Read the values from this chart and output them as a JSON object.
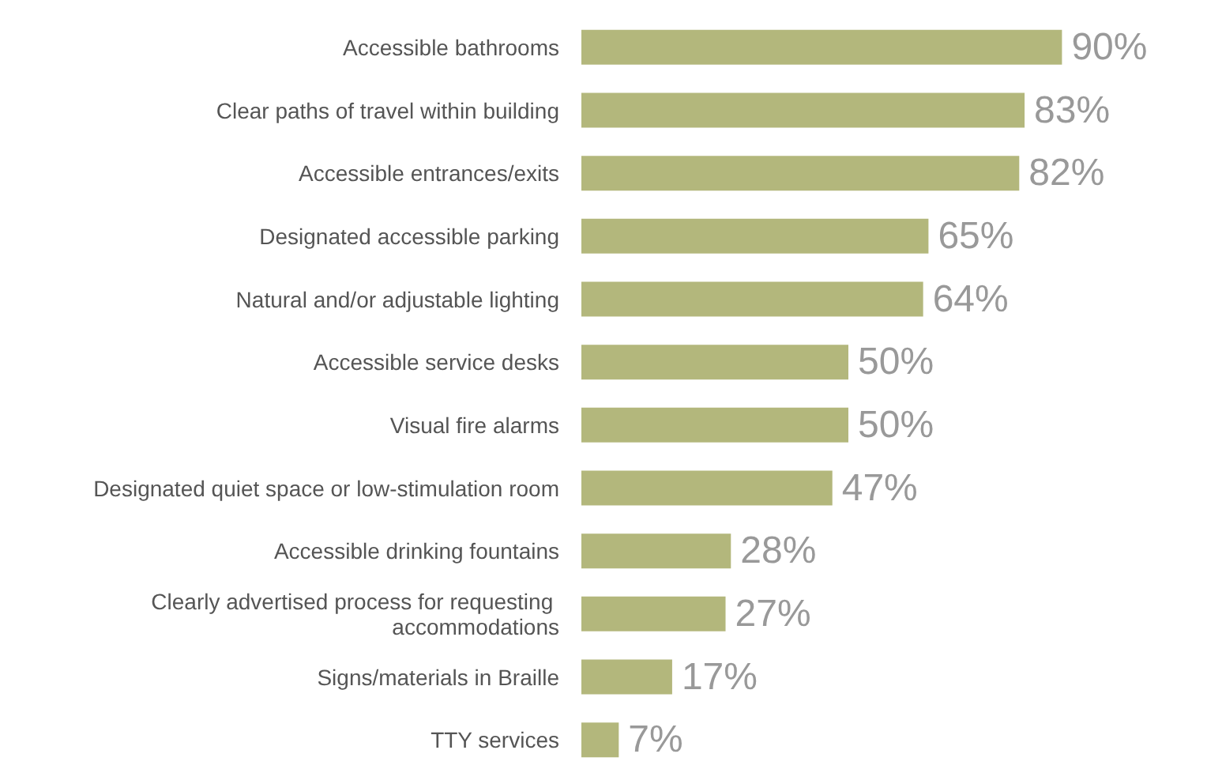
{
  "chart_data": {
    "type": "bar",
    "orientation": "horizontal",
    "categories": [
      "Accessible bathrooms",
      "Clear paths of travel within building",
      "Accessible entrances/exits",
      "Designated accessible parking",
      "Natural and/or adjustable lighting",
      "Accessible service desks",
      "Visual fire alarms",
      "Designated quiet space or low-stimulation room",
      "Accessible drinking fountains",
      "Clearly advertised process for requesting accommodations",
      "Signs/materials in Braille",
      "TTY services"
    ],
    "values": [
      90,
      83,
      82,
      65,
      64,
      50,
      50,
      47,
      28,
      27,
      17,
      7
    ],
    "value_labels": [
      "90%",
      "83%",
      "82%",
      "65%",
      "64%",
      "50%",
      "50%",
      "47%",
      "28%",
      "27%",
      "17%",
      "7%"
    ],
    "color": "#b3b77c"
  }
}
